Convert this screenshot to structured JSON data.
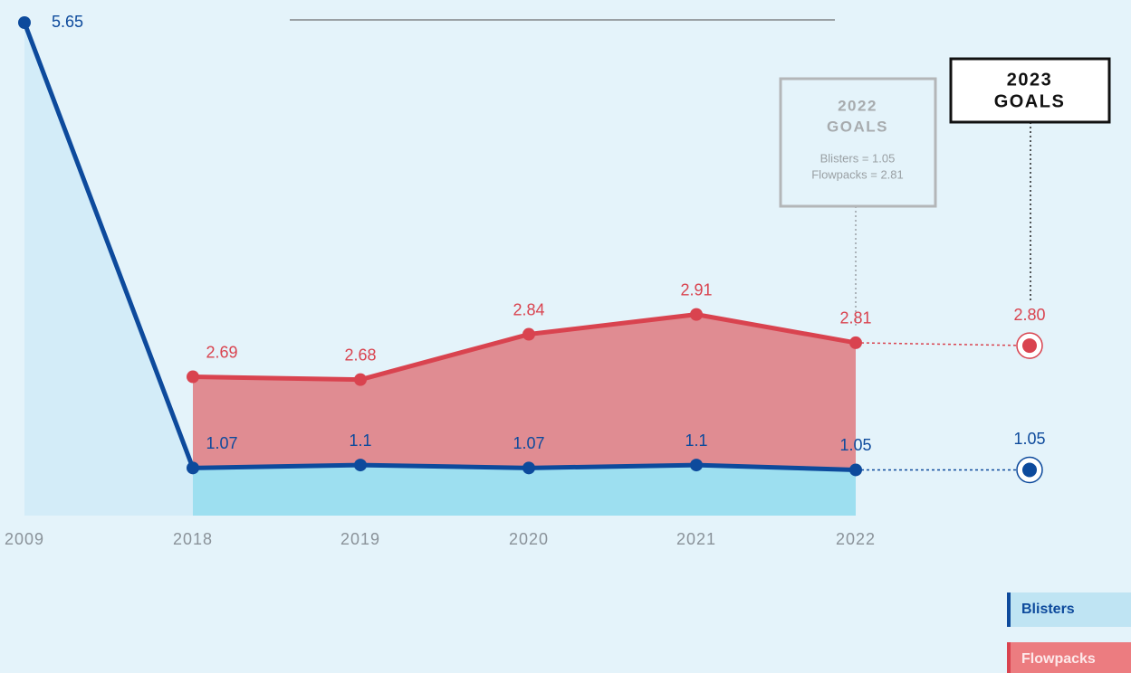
{
  "chart_data": {
    "type": "line",
    "categories": [
      "2009",
      "2018",
      "2019",
      "2020",
      "2021",
      "2022",
      null
    ],
    "series": [
      {
        "name": "Blisters",
        "color": "#0d4a9c",
        "values": [
          5.65,
          1.07,
          1.1,
          1.07,
          1.1,
          1.05,
          1.05
        ]
      },
      {
        "name": "Flowpacks",
        "color": "#d9434f",
        "axis": "y2",
        "values": [
          null,
          2.69,
          2.68,
          2.84,
          2.91,
          2.81,
          2.8
        ],
        "value_labels": [
          null,
          "2.69",
          "2.68",
          "2.84",
          "2.91",
          "2.81",
          "2.80"
        ]
      }
    ],
    "ylim": [
      0.58,
      5.65
    ],
    "y2lim": [
      2.2,
      3.94
    ],
    "annotations": [
      {
        "title": "2022",
        "subtitle": "GOALS",
        "lines": [
          "Blisters = 1.05",
          "Flowpacks = 2.81"
        ]
      },
      {
        "title": "2023",
        "subtitle": "GOALS"
      }
    ],
    "legend": "bottom-right"
  }
}
